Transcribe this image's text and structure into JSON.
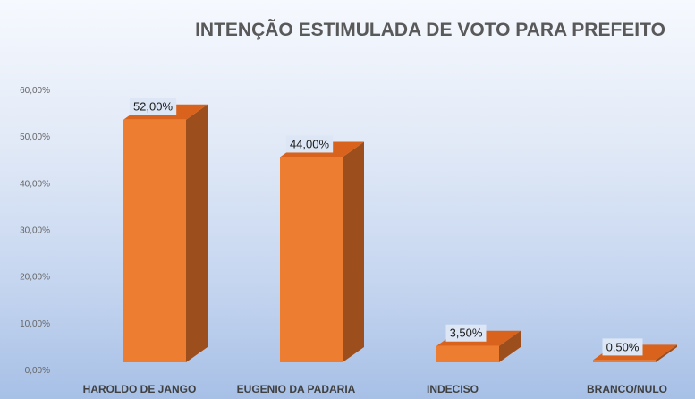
{
  "chart_data": {
    "type": "bar",
    "title": "INTENÇÃO ESTIMULADA DE VOTO PARA PREFEITO",
    "xlabel": "",
    "ylabel": "",
    "categories": [
      "HAROLDO DE JANGO",
      "EUGENIO DA PADARIA",
      "INDECISO",
      "BRANCO/NULO"
    ],
    "values": [
      52.0,
      44.0,
      3.5,
      0.5
    ],
    "data_labels": [
      "52,00%",
      "44,00%",
      "3,50%",
      "0,50%"
    ],
    "ylim": [
      0,
      60
    ],
    "y_ticks": [
      0,
      10,
      20,
      30,
      40,
      50,
      60
    ],
    "y_tick_labels": [
      "0,00%",
      "10,00%",
      "20,00%",
      "30,00%",
      "40,00%",
      "50,00%",
      "60,00%"
    ],
    "grid": false,
    "legend": "none",
    "style": "3d-column"
  },
  "colors": {
    "bar_front": "#ed7d31",
    "bar_top": "#d9621c",
    "bar_side": "#9c4f1c",
    "data_label_bg": "#dce6f4",
    "title": "#595959"
  }
}
